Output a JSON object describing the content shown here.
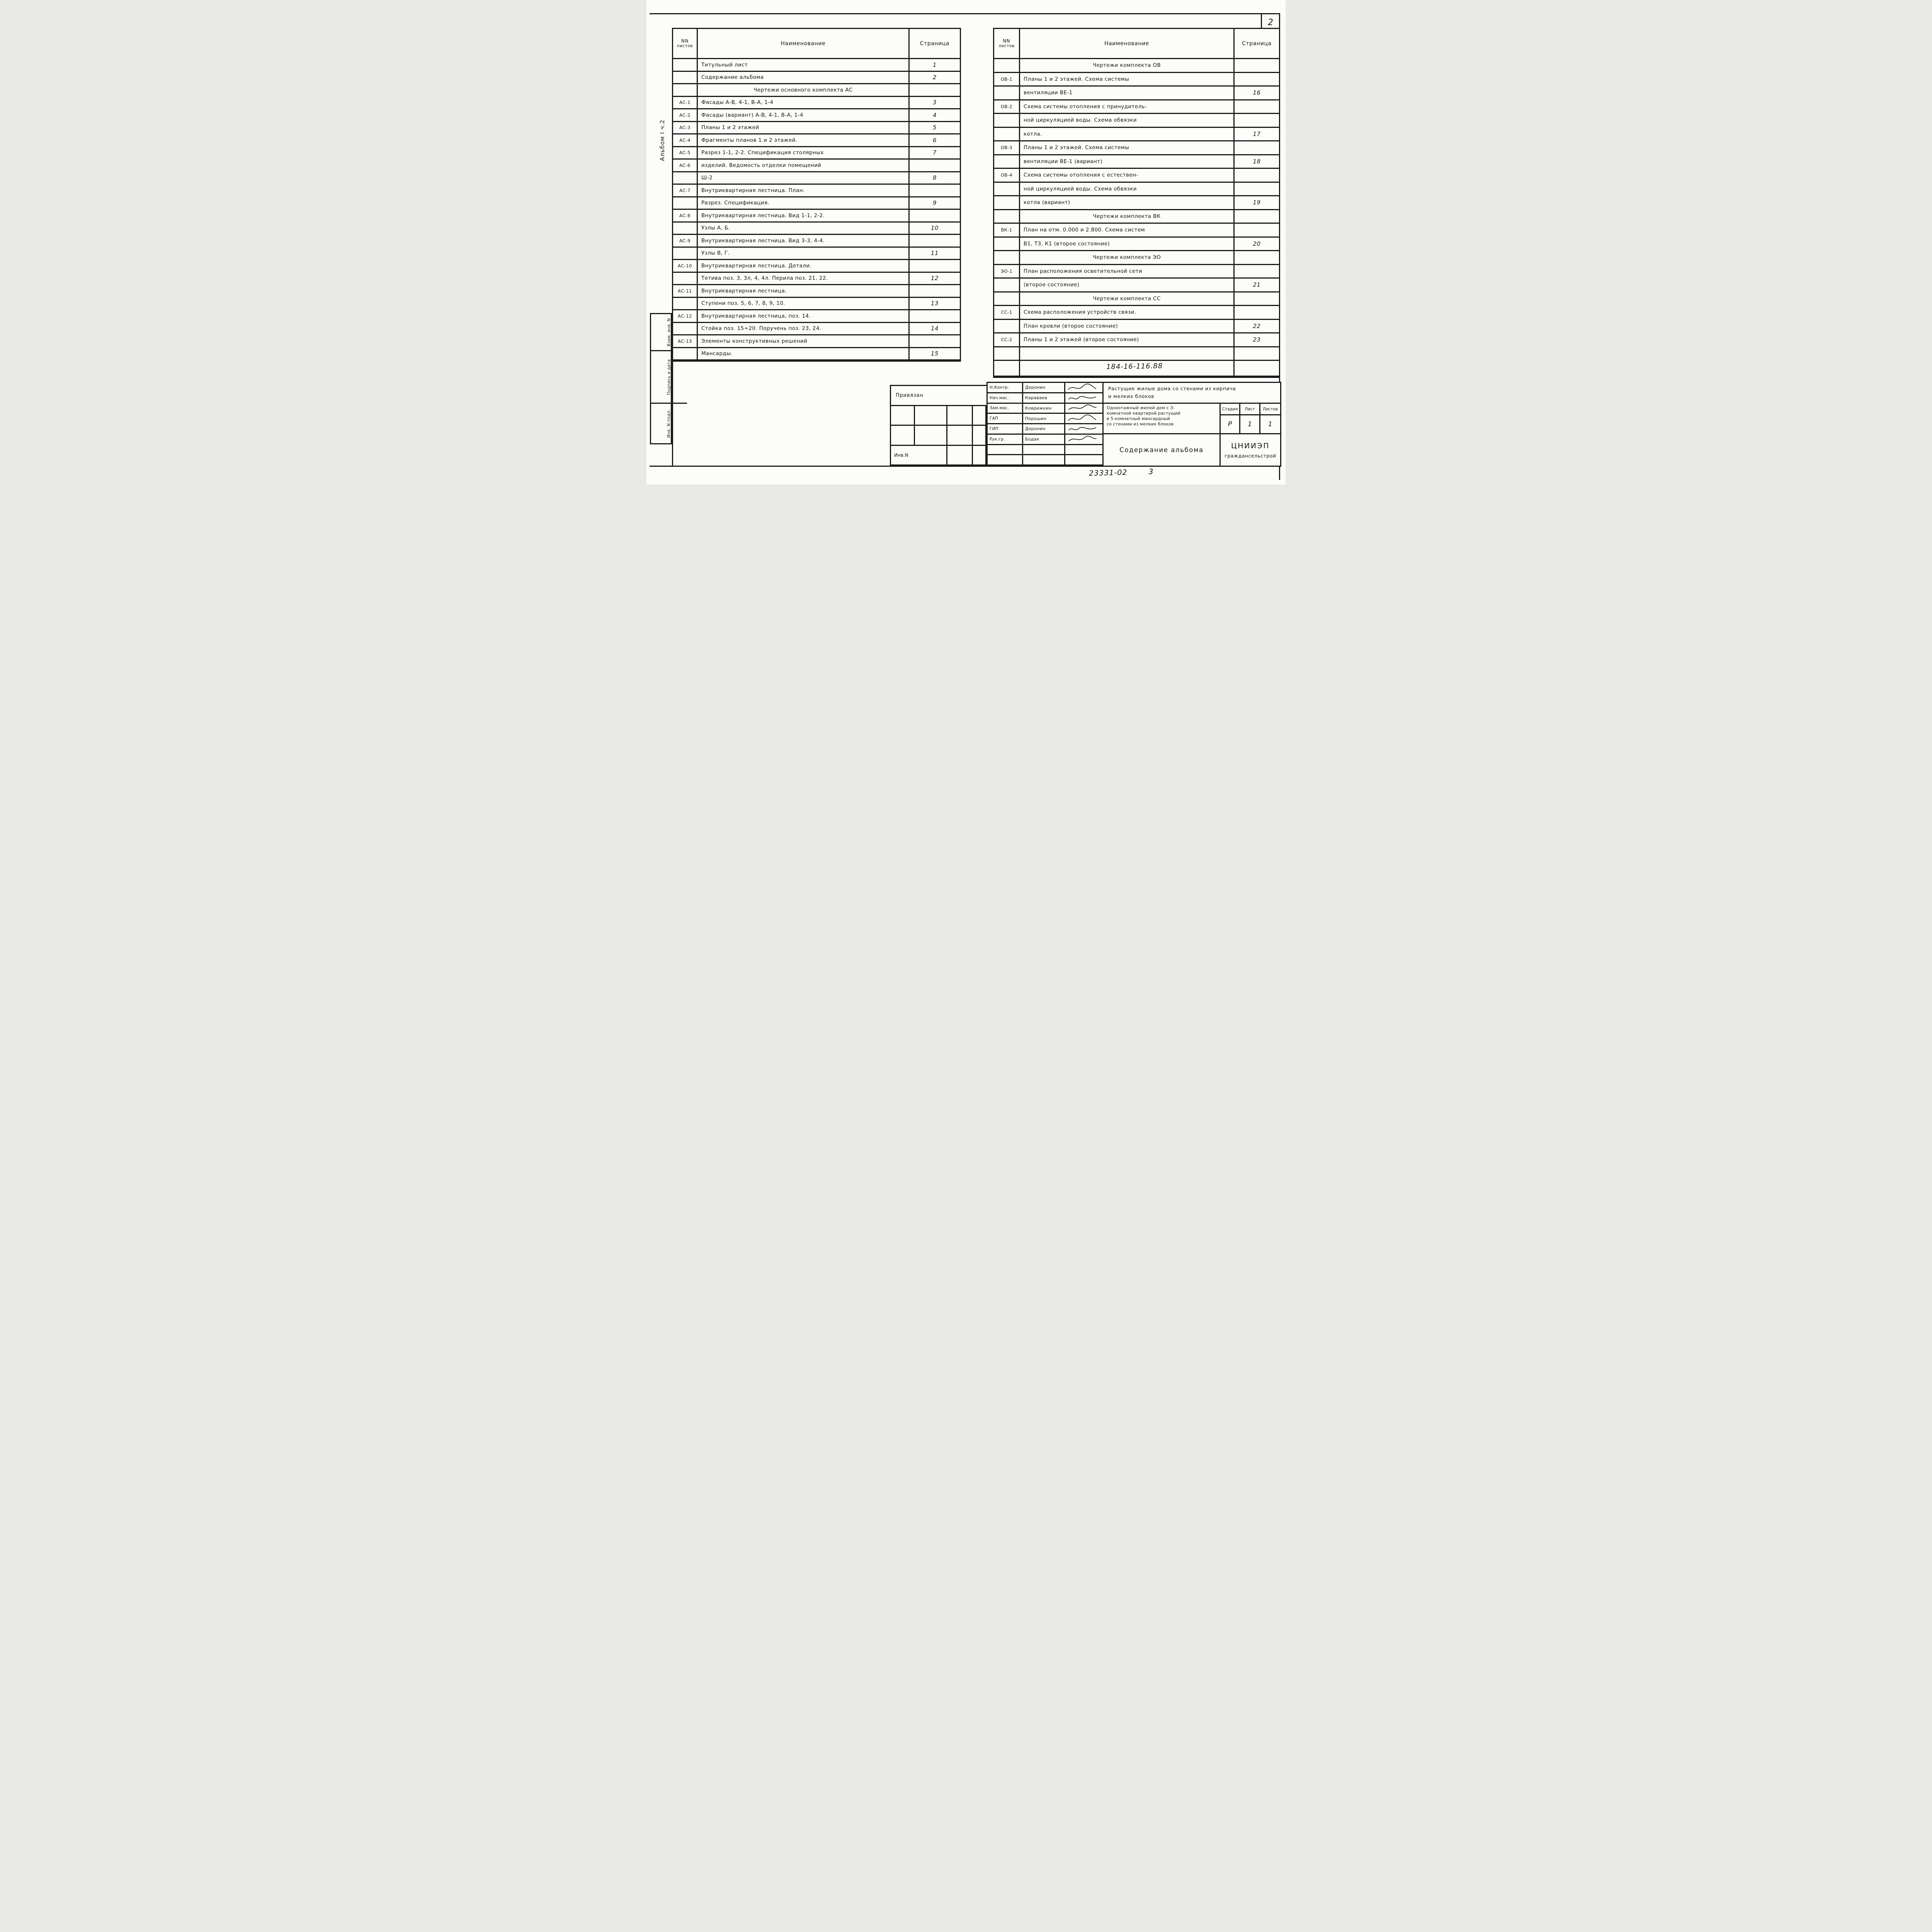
{
  "page": {
    "number": "2"
  },
  "side": {
    "album_label": "Альбом I ч.2",
    "stamp_cells": [
      "Взам. инв. N",
      "Подпись и дата",
      "Инв. N подл."
    ]
  },
  "left_table": {
    "header": {
      "num1": "NN",
      "num2": "листов",
      "name": "Наименование",
      "page": "Страница"
    },
    "rows": [
      {
        "num": "",
        "name": "Титульный лист",
        "page": "1"
      },
      {
        "num": "",
        "name": "Содержание альбома",
        "page": "2"
      },
      {
        "num": "",
        "name": "Чертежи основного комплекта АС",
        "page": "",
        "center": true
      },
      {
        "num": "АС-1",
        "name": "Фасады А-В, 4-1, В-А, 1-4",
        "page": "3"
      },
      {
        "num": "АС-2",
        "name": "Фасады (вариант) А-В, 4-1, В-А, 1-4",
        "page": "4"
      },
      {
        "num": "АС-3",
        "name": "Планы 1 и 2 этажей",
        "page": "5"
      },
      {
        "num": "АС-4",
        "name": "Фрагменты планов 1 и 2 этажей.",
        "page": "6"
      },
      {
        "num": "АС-5",
        "name": "Разрез 1-1, 2-2. Спецификация столярных",
        "page": "7"
      },
      {
        "num": "АС-6",
        "name": "изделий. Ведомость отделки помещений",
        "page": ""
      },
      {
        "num": "",
        "name": "Ш-2",
        "page": "8"
      },
      {
        "num": "АС-7",
        "name": "Внутриквартирная лестница. План.",
        "page": ""
      },
      {
        "num": "",
        "name": "Разрез. Спецификация.",
        "page": "9"
      },
      {
        "num": "АС-8",
        "name": "Внутриквартирная лестница. Вид 1-1, 2-2.",
        "page": ""
      },
      {
        "num": "",
        "name": "Узлы А, Б.",
        "page": "10"
      },
      {
        "num": "АС-9",
        "name": "Внутриквартирная лестница. Вид 3-3, 4-4.",
        "page": ""
      },
      {
        "num": "",
        "name": "Узлы В, Г.",
        "page": "11"
      },
      {
        "num": "АС-10",
        "name": "Внутриквартирная лестница. Детали.",
        "page": ""
      },
      {
        "num": "",
        "name": "Тетива поз. 3, 3л, 4, 4л. Перила поз. 21, 22.",
        "page": "12"
      },
      {
        "num": "АС-11",
        "name": "Внутриквартирная лестница.",
        "page": ""
      },
      {
        "num": "",
        "name": "Ступени поз. 5, 6, 7, 8, 9, 10.",
        "page": "13"
      },
      {
        "num": "АС-12",
        "name": "Внутриквартирная лестница, поз. 14.",
        "page": ""
      },
      {
        "num": "",
        "name": "Стойка поз. 15÷20. Поручень поз. 23, 24.",
        "page": "14"
      },
      {
        "num": "АС-13",
        "name": "Элементы конструктивных решений",
        "page": ""
      },
      {
        "num": "",
        "name": "Мансарды.",
        "page": "15"
      }
    ]
  },
  "right_table": {
    "header": {
      "num1": "NN",
      "num2": "листов",
      "name": "Наименование",
      "page": "Страница"
    },
    "rows": [
      {
        "num": "",
        "name": "Чертежи комплекта ОВ",
        "page": "",
        "center": true
      },
      {
        "num": "ОВ-1",
        "name": "Планы 1 и 2 этажей. Схема системы",
        "page": ""
      },
      {
        "num": "",
        "name": "вентиляции ВЕ-1",
        "page": "16"
      },
      {
        "num": "ОВ-2",
        "name": "Схема системы отопления с принудитель-",
        "page": ""
      },
      {
        "num": "",
        "name": "ной циркуляцией воды. Схема обвязки",
        "page": ""
      },
      {
        "num": "",
        "name": "котла.",
        "page": "17"
      },
      {
        "num": "ОВ-3",
        "name": "Планы 1 и 2 этажей. Схема системы",
        "page": ""
      },
      {
        "num": "",
        "name": "вентиляции ВЕ-1 (вариант)",
        "page": "18"
      },
      {
        "num": "ОВ-4",
        "name": "Схема системы отопления с естествен-",
        "page": ""
      },
      {
        "num": "",
        "name": "ной циркуляцией воды. Схема обвязки",
        "page": ""
      },
      {
        "num": "",
        "name": "котла (вариант)",
        "page": "19"
      },
      {
        "num": "",
        "name": "Чертежи комплекта ВК",
        "page": "",
        "center": true
      },
      {
        "num": "ВК-1",
        "name": "План на отм. 0.000 и 2.800. Схема систем",
        "page": ""
      },
      {
        "num": "",
        "name": "В1, Т3, К1 (второе состояние)",
        "page": "20"
      },
      {
        "num": "",
        "name": "Чертежи комплекта ЭО",
        "page": "",
        "center": true
      },
      {
        "num": "ЭО-1",
        "name": "План расположения осветительной сети",
        "page": ""
      },
      {
        "num": "",
        "name": "(второе состояние)",
        "page": "21"
      },
      {
        "num": "",
        "name": "Чертежи комплекта СС",
        "page": "",
        "center": true
      },
      {
        "num": "СС-1",
        "name": "Схема расположения устройств связи.",
        "page": ""
      },
      {
        "num": "",
        "name": "План кровли (второе состояние)",
        "page": "22"
      },
      {
        "num": "СС-2",
        "name": "Планы 1 и 2 этажей (второе состояние)",
        "page": "23"
      },
      {
        "num": "",
        "name": "",
        "page": ""
      },
      {
        "num": "",
        "name": "",
        "page": ""
      }
    ]
  },
  "title_block": {
    "doc_number": "184-16-116.88",
    "binding_label": "Привязан",
    "inv_label": "Инв.N",
    "series_title_lines": [
      "Растущие жилые дома со стенами из кирпича",
      "и мелких блоков"
    ],
    "object_lines": [
      "Одноэтажный жилой дом с 3-",
      "комнатной квартирой растущий",
      "в 5-комнатный мансардный",
      "со стенами из мелких блоков"
    ],
    "stage_label": "Стадия",
    "sheet_label": "Лист",
    "sheets_label": "Листов",
    "stage": "Р",
    "sheet": "1",
    "sheets": "1",
    "doc_title": "Содержание альбома",
    "organization_line1": "ЦНИИЭП",
    "organization_line2": "граждансельстрой",
    "staff": [
      {
        "role": "Н.Контр.",
        "name": "Доронин"
      },
      {
        "role": "Нач.мас.",
        "name": "Караваев"
      },
      {
        "role": "Зам.мас.",
        "name": "Коврижкин"
      },
      {
        "role": "ГАП",
        "name": "Порошин"
      },
      {
        "role": "ГИП",
        "name": "Доронин"
      },
      {
        "role": "Рук.гр.",
        "name": "Бодак"
      }
    ],
    "footer_code": "23331-02",
    "footer_sheet": "3"
  },
  "colors": {
    "ink": "#1b1b1b",
    "paper": "#fcfcf9"
  }
}
